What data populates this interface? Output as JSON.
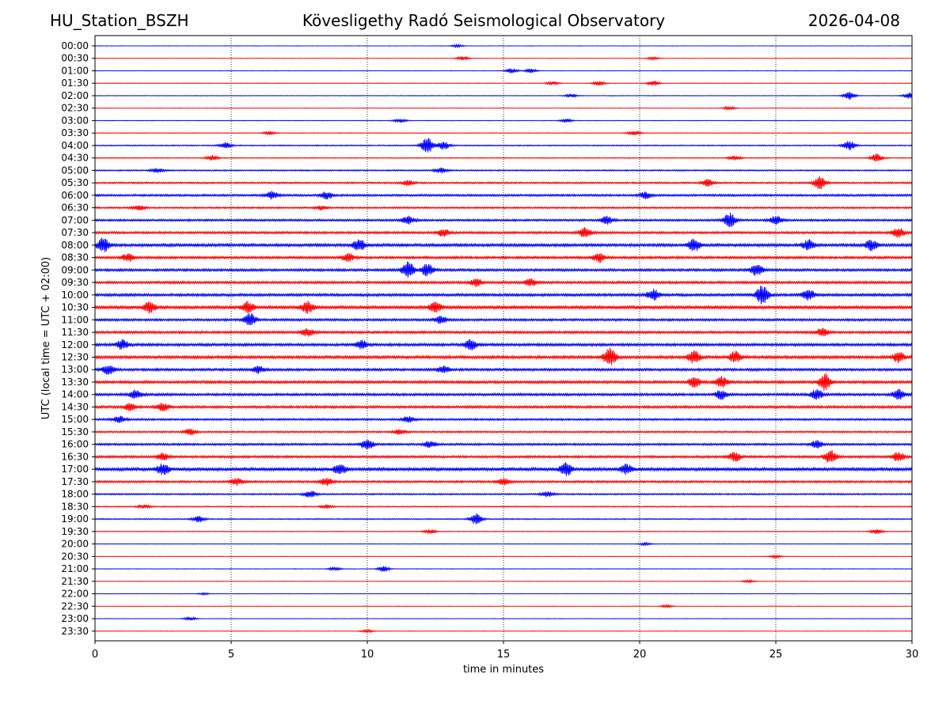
{
  "header": {
    "station": "HU_Station_BSZH",
    "title": "Kövesligethy Radó Seismological Observatory",
    "date": "2026-04-08"
  },
  "chart_data": {
    "type": "line",
    "title": "Kövesligethy Radó Seismological Observatory",
    "xlabel": "time in minutes",
    "ylabel": "UTC (local time = UTC + 02:00)",
    "xlim": [
      0,
      30
    ],
    "xticks": [
      0,
      5,
      10,
      15,
      20,
      25,
      30
    ],
    "vertical_gridlines": [
      5,
      10,
      15,
      20,
      25
    ],
    "series_colors": [
      "#0000ff",
      "#ff0000"
    ],
    "rows": [
      {
        "label": "00:00",
        "noise": 0.1,
        "events": [
          [
            13.3,
            0.3
          ]
        ]
      },
      {
        "label": "00:30",
        "noise": 0.12,
        "events": [
          [
            13.5,
            0.5
          ],
          [
            20.5,
            0.3
          ]
        ]
      },
      {
        "label": "01:00",
        "noise": 0.12,
        "events": [
          [
            15.3,
            0.6
          ],
          [
            16.0,
            0.5
          ]
        ]
      },
      {
        "label": "01:30",
        "noise": 0.15,
        "events": [
          [
            16.8,
            0.4
          ],
          [
            18.5,
            0.5
          ],
          [
            20.5,
            0.6
          ]
        ]
      },
      {
        "label": "02:00",
        "noise": 0.15,
        "events": [
          [
            17.5,
            0.4
          ],
          [
            27.7,
            0.9
          ],
          [
            29.9,
            0.7
          ]
        ]
      },
      {
        "label": "02:30",
        "noise": 0.12,
        "events": [
          [
            23.3,
            0.4
          ]
        ]
      },
      {
        "label": "03:00",
        "noise": 0.15,
        "events": [
          [
            11.2,
            0.5
          ],
          [
            17.3,
            0.4
          ]
        ]
      },
      {
        "label": "03:30",
        "noise": 0.18,
        "events": [
          [
            6.4,
            0.4
          ],
          [
            19.8,
            0.6
          ]
        ]
      },
      {
        "label": "04:00",
        "noise": 0.3,
        "events": [
          [
            4.8,
            0.7
          ],
          [
            12.2,
            1.9
          ],
          [
            12.8,
            1.0
          ],
          [
            27.7,
            1.1
          ]
        ]
      },
      {
        "label": "04:30",
        "noise": 0.25,
        "events": [
          [
            4.3,
            0.6
          ],
          [
            23.5,
            0.5
          ],
          [
            28.7,
            1.0
          ]
        ]
      },
      {
        "label": "05:00",
        "noise": 0.35,
        "events": [
          [
            2.3,
            0.5
          ],
          [
            12.7,
            0.6
          ]
        ]
      },
      {
        "label": "05:30",
        "noise": 0.45,
        "events": [
          [
            11.5,
            0.6
          ],
          [
            22.5,
            0.8
          ],
          [
            26.6,
            1.5
          ]
        ]
      },
      {
        "label": "06:00",
        "noise": 0.55,
        "events": [
          [
            6.5,
            0.9
          ],
          [
            8.5,
            0.8
          ],
          [
            20.2,
            0.7
          ]
        ]
      },
      {
        "label": "06:30",
        "noise": 0.45,
        "events": [
          [
            1.6,
            0.6
          ],
          [
            8.3,
            0.5
          ]
        ]
      },
      {
        "label": "07:00",
        "noise": 0.55,
        "events": [
          [
            11.5,
            0.9
          ],
          [
            18.8,
            0.9
          ],
          [
            23.3,
            1.7
          ],
          [
            25.0,
            1.0
          ]
        ]
      },
      {
        "label": "07:30",
        "noise": 0.6,
        "events": [
          [
            12.8,
            0.9
          ],
          [
            18.0,
            1.1
          ],
          [
            29.5,
            1.1
          ]
        ]
      },
      {
        "label": "08:00",
        "noise": 0.75,
        "events": [
          [
            0.3,
            1.6
          ],
          [
            9.7,
            1.3
          ],
          [
            22.0,
            1.4
          ],
          [
            26.2,
            1.2
          ],
          [
            28.5,
            1.2
          ]
        ]
      },
      {
        "label": "08:30",
        "noise": 0.65,
        "events": [
          [
            1.2,
            0.9
          ],
          [
            9.3,
            0.9
          ],
          [
            18.5,
            1.1
          ]
        ]
      },
      {
        "label": "09:00",
        "noise": 0.65,
        "events": [
          [
            11.5,
            2.0
          ],
          [
            12.2,
            1.4
          ],
          [
            24.3,
            1.4
          ]
        ]
      },
      {
        "label": "09:30",
        "noise": 0.65,
        "events": [
          [
            14.0,
            0.9
          ],
          [
            16.0,
            0.8
          ]
        ]
      },
      {
        "label": "10:00",
        "noise": 0.7,
        "events": [
          [
            20.5,
            1.3
          ],
          [
            24.5,
            2.2
          ],
          [
            26.2,
            1.2
          ]
        ]
      },
      {
        "label": "10:30",
        "noise": 0.85,
        "events": [
          [
            2.0,
            1.2
          ],
          [
            5.6,
            1.3
          ],
          [
            7.8,
            1.3
          ],
          [
            12.5,
            1.1
          ]
        ]
      },
      {
        "label": "11:00",
        "noise": 0.6,
        "events": [
          [
            5.7,
            1.5
          ],
          [
            12.7,
            0.8
          ]
        ]
      },
      {
        "label": "11:30",
        "noise": 0.65,
        "events": [
          [
            7.8,
            0.9
          ],
          [
            26.7,
            0.9
          ]
        ]
      },
      {
        "label": "12:00",
        "noise": 0.7,
        "events": [
          [
            1.0,
            1.1
          ],
          [
            9.8,
            0.9
          ],
          [
            13.8,
            1.2
          ]
        ]
      },
      {
        "label": "12:30",
        "noise": 0.75,
        "events": [
          [
            18.9,
            2.1
          ],
          [
            22.0,
            1.4
          ],
          [
            23.5,
            1.3
          ],
          [
            29.5,
            1.2
          ]
        ]
      },
      {
        "label": "13:00",
        "noise": 0.65,
        "events": [
          [
            0.5,
            1.1
          ],
          [
            6.0,
            0.8
          ],
          [
            12.8,
            0.8
          ]
        ]
      },
      {
        "label": "13:30",
        "noise": 0.7,
        "events": [
          [
            22.0,
            1.3
          ],
          [
            23.0,
            1.3
          ],
          [
            26.8,
            2.0
          ]
        ]
      },
      {
        "label": "14:00",
        "noise": 0.65,
        "events": [
          [
            1.5,
            1.0
          ],
          [
            23.0,
            1.0
          ],
          [
            26.5,
            1.2
          ],
          [
            29.5,
            1.2
          ]
        ]
      },
      {
        "label": "14:30",
        "noise": 0.65,
        "events": [
          [
            1.3,
            0.8
          ],
          [
            2.5,
            0.9
          ]
        ]
      },
      {
        "label": "15:00",
        "noise": 0.5,
        "events": [
          [
            0.9,
            0.8
          ],
          [
            11.5,
            0.7
          ]
        ]
      },
      {
        "label": "15:30",
        "noise": 0.45,
        "events": [
          [
            3.5,
            0.7
          ],
          [
            11.2,
            0.6
          ]
        ]
      },
      {
        "label": "16:00",
        "noise": 0.55,
        "events": [
          [
            10.0,
            1.3
          ],
          [
            12.3,
            0.7
          ],
          [
            26.5,
            0.9
          ]
        ]
      },
      {
        "label": "16:30",
        "noise": 0.6,
        "events": [
          [
            2.5,
            0.8
          ],
          [
            23.5,
            1.1
          ],
          [
            27.0,
            1.5
          ],
          [
            29.5,
            1.1
          ]
        ]
      },
      {
        "label": "17:00",
        "noise": 0.85,
        "events": [
          [
            2.5,
            1.3
          ],
          [
            9.0,
            1.2
          ],
          [
            17.3,
            1.5
          ],
          [
            19.5,
            1.1
          ]
        ]
      },
      {
        "label": "17:30",
        "noise": 0.55,
        "events": [
          [
            5.2,
            0.8
          ],
          [
            8.5,
            0.9
          ],
          [
            15.0,
            0.7
          ]
        ]
      },
      {
        "label": "18:00",
        "noise": 0.4,
        "events": [
          [
            7.9,
            0.8
          ],
          [
            16.6,
            0.6
          ]
        ]
      },
      {
        "label": "18:30",
        "noise": 0.3,
        "events": [
          [
            1.8,
            0.4
          ],
          [
            8.5,
            0.4
          ]
        ]
      },
      {
        "label": "19:00",
        "noise": 0.3,
        "events": [
          [
            3.8,
            0.7
          ],
          [
            14.0,
            1.3
          ]
        ]
      },
      {
        "label": "19:30",
        "noise": 0.2,
        "events": [
          [
            12.3,
            0.5
          ],
          [
            28.7,
            0.5
          ]
        ]
      },
      {
        "label": "20:00",
        "noise": 0.15,
        "events": [
          [
            20.2,
            0.3
          ]
        ]
      },
      {
        "label": "20:30",
        "noise": 0.12,
        "events": [
          [
            25.0,
            0.3
          ]
        ]
      },
      {
        "label": "21:00",
        "noise": 0.15,
        "events": [
          [
            8.8,
            0.4
          ],
          [
            10.6,
            0.7
          ]
        ]
      },
      {
        "label": "21:30",
        "noise": 0.12,
        "events": [
          [
            24.0,
            0.3
          ]
        ]
      },
      {
        "label": "22:00",
        "noise": 0.12,
        "events": [
          [
            4.0,
            0.2
          ]
        ]
      },
      {
        "label": "22:30",
        "noise": 0.12,
        "events": [
          [
            21.0,
            0.3
          ]
        ]
      },
      {
        "label": "23:00",
        "noise": 0.12,
        "events": [
          [
            3.5,
            0.4
          ]
        ]
      },
      {
        "label": "23:30",
        "noise": 0.12,
        "events": [
          [
            10.0,
            0.3
          ]
        ]
      }
    ]
  }
}
